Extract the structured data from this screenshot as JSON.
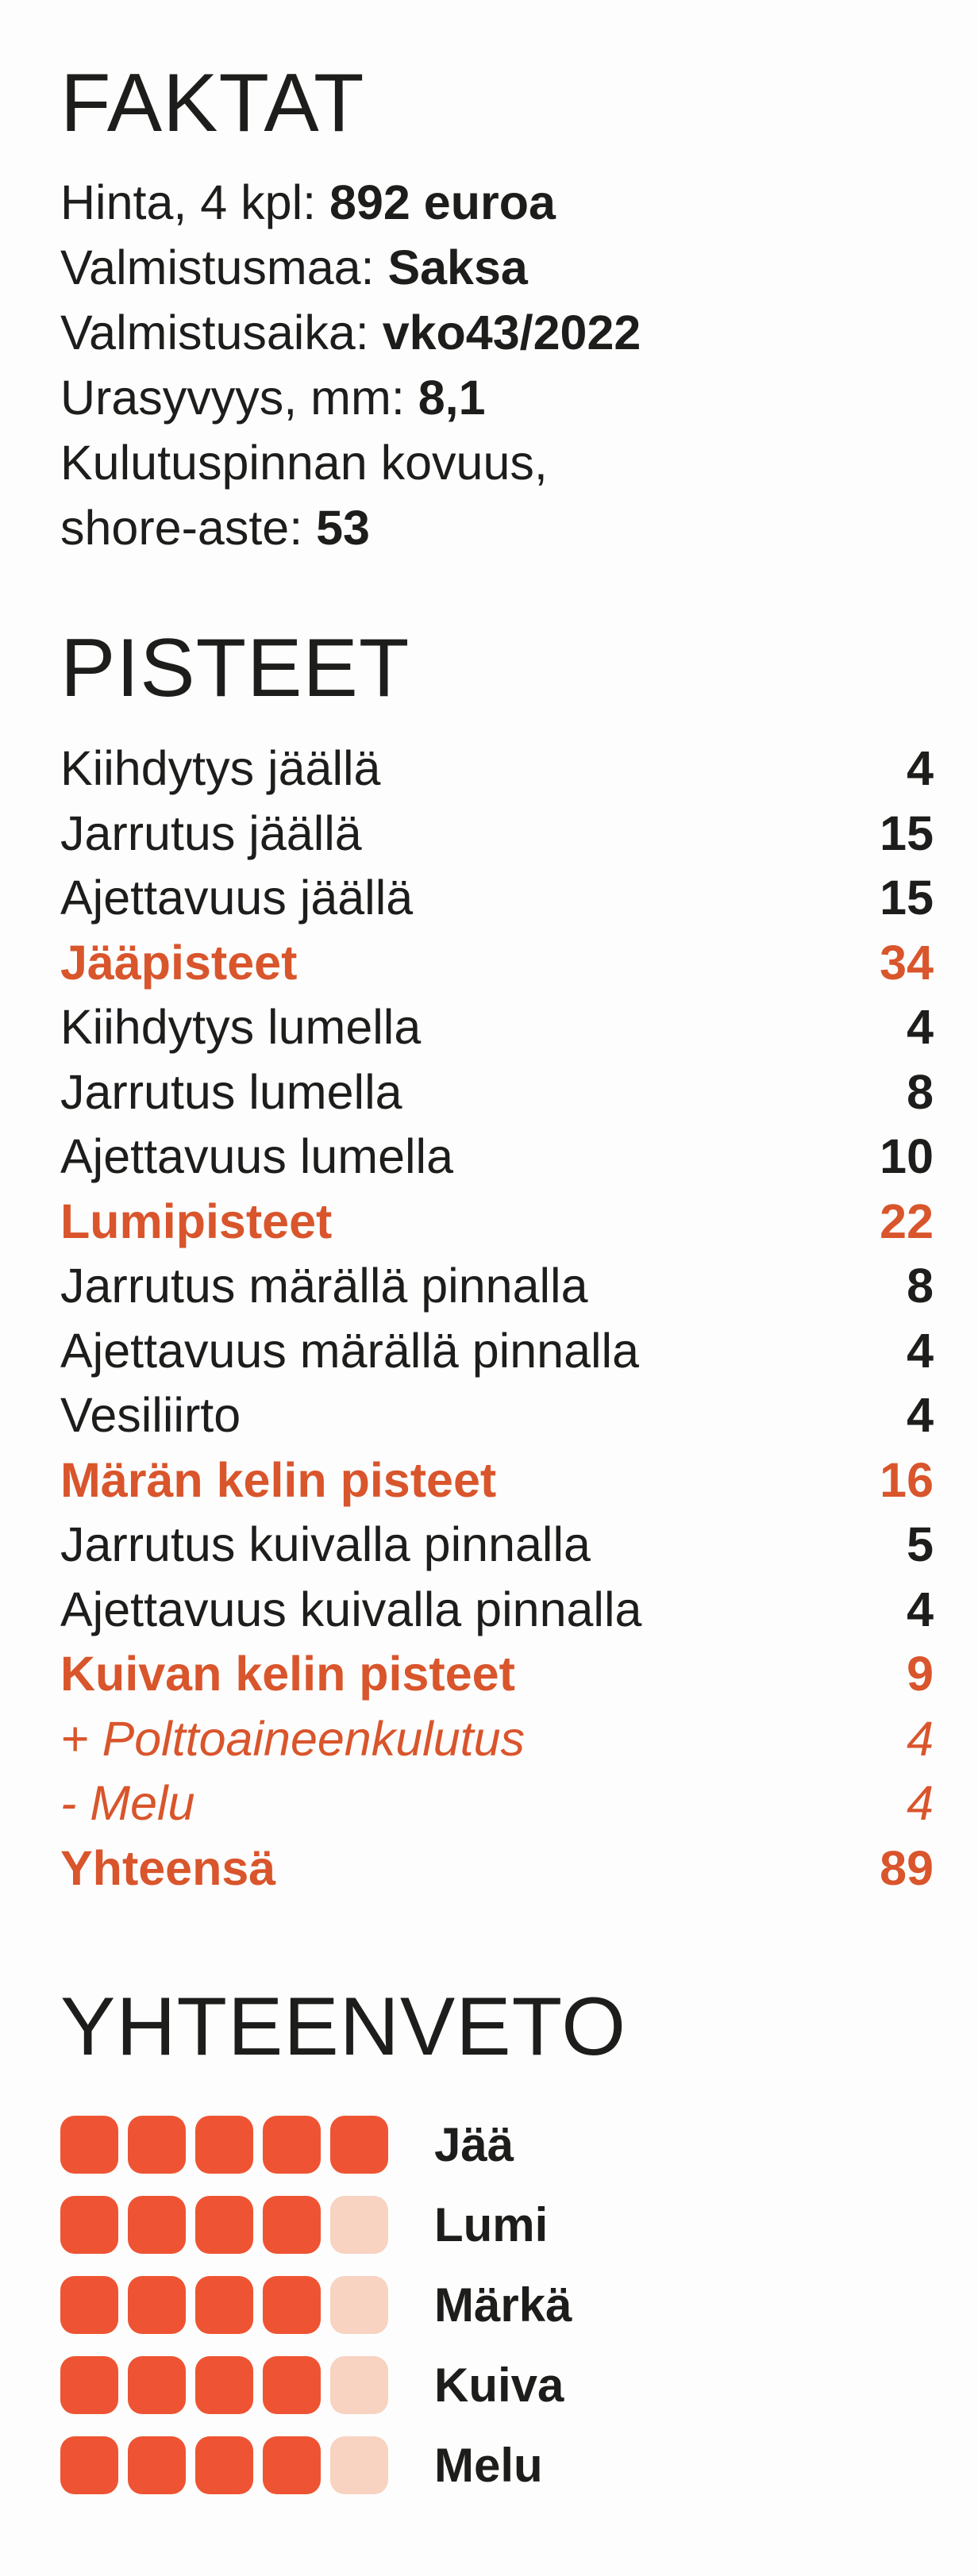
{
  "facts": {
    "title": "FAKTAT",
    "items": [
      {
        "label": "Hinta, 4 kpl: ",
        "value": "892 euroa"
      },
      {
        "label": "Valmistusmaa: ",
        "value": "Saksa"
      },
      {
        "label": "Valmistusaika: ",
        "value": "vko43/2022"
      },
      {
        "label": "Urasyvyys, mm: ",
        "value": "8,1"
      },
      {
        "label": "Kulutuspinnan kovuus,",
        "value": ""
      },
      {
        "label": "shore-aste: ",
        "value": "53"
      }
    ]
  },
  "scores": {
    "title": "PISTEET",
    "rows": [
      {
        "label": "Kiihdytys jäällä",
        "value": "4",
        "kind": "item"
      },
      {
        "label": "Jarrutus jäällä",
        "value": "15",
        "kind": "item"
      },
      {
        "label": "Ajettavuus jäällä",
        "value": "15",
        "kind": "item"
      },
      {
        "label": "Jääpisteet",
        "value": "34",
        "kind": "subtotal"
      },
      {
        "label": "Kiihdytys lumella",
        "value": "4",
        "kind": "item"
      },
      {
        "label": "Jarrutus lumella",
        "value": "8",
        "kind": "item"
      },
      {
        "label": "Ajettavuus lumella",
        "value": "10",
        "kind": "item"
      },
      {
        "label": "Lumipisteet",
        "value": "22",
        "kind": "subtotal"
      },
      {
        "label": "Jarrutus märällä pinnalla",
        "value": "8",
        "kind": "item"
      },
      {
        "label": "Ajettavuus märällä pinnalla",
        "value": "4",
        "kind": "item"
      },
      {
        "label": "Vesiliirto",
        "value": "4",
        "kind": "item"
      },
      {
        "label": "Märän kelin pisteet",
        "value": "16",
        "kind": "subtotal"
      },
      {
        "label": "Jarrutus kuivalla pinnalla",
        "value": "5",
        "kind": "item"
      },
      {
        "label": "Ajettavuus kuivalla pinnalla",
        "value": "4",
        "kind": "item"
      },
      {
        "label": "Kuivan kelin pisteet",
        "value": "9",
        "kind": "subtotal"
      },
      {
        "label": "+ Polttoaineenkulutus",
        "value": "4",
        "kind": "adjustment"
      },
      {
        "label": "- Melu",
        "value": "4",
        "kind": "adjustment"
      },
      {
        "label": "Yhteensä",
        "value": "89",
        "kind": "subtotal"
      }
    ]
  },
  "summary": {
    "title": "YHTEENVETO",
    "max_rating": 5,
    "colors": {
      "filled": "#ee5433",
      "empty": "#f8d3c1",
      "accent": "#d9552c"
    },
    "rows": [
      {
        "label": "Jää",
        "rating": 5
      },
      {
        "label": "Lumi",
        "rating": 4
      },
      {
        "label": "Märkä",
        "rating": 4
      },
      {
        "label": "Kuiva",
        "rating": 4
      },
      {
        "label": "Melu",
        "rating": 4
      }
    ]
  }
}
